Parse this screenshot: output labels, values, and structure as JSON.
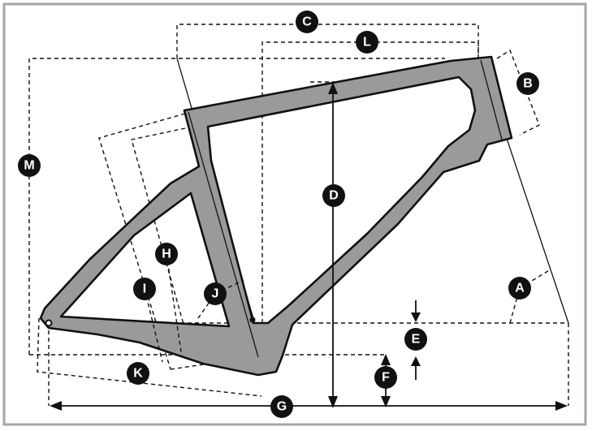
{
  "labels": {
    "a": "A",
    "b": "B",
    "c": "C",
    "d": "D",
    "e": "E",
    "f": "F",
    "g": "G",
    "h": "H",
    "i": "I",
    "j": "J",
    "k": "K",
    "l": "L",
    "m": "M"
  },
  "colors": {
    "frame_fill": "#9a9a9a",
    "line": "#111111",
    "border": "#a6a6a6",
    "badge": "#111111",
    "badge_text": "#ffffff"
  }
}
